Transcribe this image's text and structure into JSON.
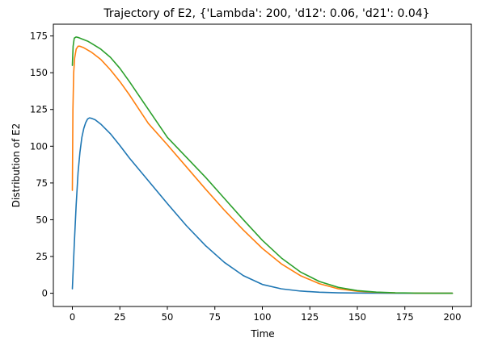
{
  "chart_data": {
    "type": "line",
    "title": "Trajectory of E2, {'Lambda': 200, 'd12': 0.06, 'd21': 0.04}",
    "xlabel": "Time",
    "ylabel": "Distribution of E2",
    "xlim": [
      -10,
      210
    ],
    "ylim": [
      -9,
      183
    ],
    "xticks": [
      0,
      25,
      50,
      75,
      100,
      125,
      150,
      175,
      200
    ],
    "yticks": [
      0,
      25,
      50,
      75,
      100,
      125,
      150,
      175
    ],
    "grid": false,
    "legend": "none",
    "series": [
      {
        "color": "#1f77b4",
        "x": [
          0,
          1,
          2,
          3,
          4,
          5,
          6,
          7,
          8,
          9,
          10,
          12,
          15,
          20,
          25,
          30,
          40,
          50,
          60,
          70,
          80,
          90,
          100,
          110,
          120,
          130,
          140,
          150,
          160,
          170,
          180,
          190,
          200
        ],
        "y": [
          3,
          33,
          60,
          82,
          96,
          106,
          112,
          116,
          118.5,
          119.3,
          119,
          118,
          115,
          108.5,
          100.5,
          92,
          76.5,
          61,
          46,
          32.5,
          21,
          12,
          6,
          3,
          1.5,
          0.7,
          0.3,
          0.15,
          0.05,
          0,
          0,
          0,
          0
        ]
      },
      {
        "color": "#ff7f0e",
        "x": [
          0,
          0.3,
          0.7,
          1.2,
          2,
          3,
          4,
          6,
          8,
          10,
          15,
          20,
          25,
          30,
          40,
          50,
          60,
          70,
          80,
          90,
          100,
          110,
          120,
          130,
          140,
          150,
          160,
          170,
          180,
          190,
          200
        ],
        "y": [
          70,
          125,
          150,
          160,
          166,
          168,
          168,
          167,
          165.5,
          164,
          159,
          152,
          144,
          135,
          115.5,
          101,
          86,
          71,
          56.5,
          43,
          30.5,
          20,
          12,
          6.5,
          3,
          1.4,
          0.6,
          0.2,
          0.1,
          0,
          0
        ]
      },
      {
        "color": "#2ca02c",
        "x": [
          0,
          0.4,
          1,
          2,
          3,
          5,
          8,
          10,
          15,
          20,
          25,
          30,
          40,
          50,
          60,
          70,
          80,
          90,
          100,
          110,
          120,
          130,
          140,
          150,
          160,
          170,
          180,
          190,
          200
        ],
        "y": [
          155,
          168,
          173.5,
          174.3,
          174,
          173,
          171.5,
          170,
          166,
          160.5,
          153,
          144,
          125,
          106,
          92.5,
          79,
          64.5,
          50,
          36,
          24,
          14.5,
          8,
          4,
          1.8,
          0.8,
          0.3,
          0.1,
          0,
          0
        ]
      }
    ]
  }
}
